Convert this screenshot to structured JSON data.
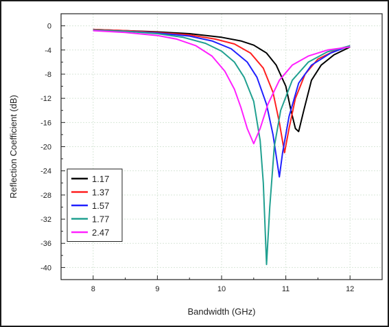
{
  "chart_data": {
    "type": "line",
    "title": "",
    "xlabel": "Bandwidth (GHz)",
    "ylabel": "Reflection Coefficient (dB)",
    "xlim": [
      7.5,
      12.5
    ],
    "ylim": [
      -42,
      2
    ],
    "x_ticks": [
      8,
      9,
      10,
      11,
      12
    ],
    "x_tick_labels": [
      "8",
      "9",
      "10",
      "11",
      "12"
    ],
    "y_ticks": [
      0,
      -4,
      -8,
      -12,
      -16,
      -20,
      -24,
      -28,
      -32,
      -36,
      -40
    ],
    "y_tick_labels": [
      "0",
      "-4",
      "-8",
      "-12",
      "-16",
      "-20",
      "-24",
      "-28",
      "-32",
      "-36",
      "-40"
    ],
    "grid": true,
    "legend_position": "bottom-left",
    "series": [
      {
        "name": "1.17",
        "color": "#000000",
        "points": [
          [
            8.0,
            -0.6
          ],
          [
            8.5,
            -0.8
          ],
          [
            9.0,
            -1.0
          ],
          [
            9.5,
            -1.3
          ],
          [
            10.0,
            -1.9
          ],
          [
            10.3,
            -2.5
          ],
          [
            10.5,
            -3.2
          ],
          [
            10.7,
            -4.5
          ],
          [
            10.85,
            -6.5
          ],
          [
            11.0,
            -10.0
          ],
          [
            11.08,
            -14.0
          ],
          [
            11.15,
            -17.0
          ],
          [
            11.2,
            -17.5
          ],
          [
            11.28,
            -14.0
          ],
          [
            11.4,
            -9.0
          ],
          [
            11.55,
            -6.5
          ],
          [
            11.75,
            -4.8
          ],
          [
            12.0,
            -3.5
          ]
        ]
      },
      {
        "name": "1.37",
        "color": "#ff2020",
        "points": [
          [
            8.0,
            -0.6
          ],
          [
            8.5,
            -0.8
          ],
          [
            9.0,
            -1.1
          ],
          [
            9.5,
            -1.5
          ],
          [
            9.9,
            -2.2
          ],
          [
            10.2,
            -3.0
          ],
          [
            10.45,
            -4.5
          ],
          [
            10.65,
            -7.0
          ],
          [
            10.8,
            -11.0
          ],
          [
            10.9,
            -16.0
          ],
          [
            10.98,
            -21.0
          ],
          [
            11.05,
            -17.0
          ],
          [
            11.15,
            -12.0
          ],
          [
            11.3,
            -8.0
          ],
          [
            11.5,
            -5.5
          ],
          [
            11.75,
            -4.2
          ],
          [
            12.0,
            -3.3
          ]
        ]
      },
      {
        "name": "1.57",
        "color": "#2020ff",
        "points": [
          [
            8.0,
            -0.7
          ],
          [
            8.5,
            -0.9
          ],
          [
            9.0,
            -1.2
          ],
          [
            9.5,
            -1.7
          ],
          [
            9.85,
            -2.5
          ],
          [
            10.15,
            -3.8
          ],
          [
            10.4,
            -6.0
          ],
          [
            10.55,
            -8.5
          ],
          [
            10.7,
            -13.0
          ],
          [
            10.8,
            -18.0
          ],
          [
            10.9,
            -25.0
          ],
          [
            10.95,
            -21.0
          ],
          [
            11.05,
            -15.0
          ],
          [
            11.2,
            -9.5
          ],
          [
            11.4,
            -6.5
          ],
          [
            11.7,
            -4.5
          ],
          [
            12.0,
            -3.3
          ]
        ]
      },
      {
        "name": "1.77",
        "color": "#20a090",
        "points": [
          [
            8.0,
            -0.7
          ],
          [
            8.5,
            -0.9
          ],
          [
            9.0,
            -1.3
          ],
          [
            9.4,
            -1.9
          ],
          [
            9.75,
            -2.9
          ],
          [
            10.0,
            -4.2
          ],
          [
            10.2,
            -6.0
          ],
          [
            10.35,
            -8.5
          ],
          [
            10.5,
            -12.5
          ],
          [
            10.6,
            -19.0
          ],
          [
            10.65,
            -26.0
          ],
          [
            10.7,
            -39.5
          ],
          [
            10.75,
            -30.0
          ],
          [
            10.82,
            -20.0
          ],
          [
            10.92,
            -14.0
          ],
          [
            11.1,
            -9.0
          ],
          [
            11.35,
            -6.0
          ],
          [
            11.65,
            -4.3
          ],
          [
            12.0,
            -3.3
          ]
        ]
      },
      {
        "name": "2.47",
        "color": "#ff20ff",
        "points": [
          [
            8.0,
            -0.8
          ],
          [
            8.5,
            -1.1
          ],
          [
            9.0,
            -1.6
          ],
          [
            9.3,
            -2.2
          ],
          [
            9.6,
            -3.3
          ],
          [
            9.85,
            -5.0
          ],
          [
            10.05,
            -7.5
          ],
          [
            10.2,
            -10.5
          ],
          [
            10.3,
            -13.5
          ],
          [
            10.4,
            -17.0
          ],
          [
            10.5,
            -19.5
          ],
          [
            10.6,
            -17.0
          ],
          [
            10.72,
            -13.0
          ],
          [
            10.9,
            -9.0
          ],
          [
            11.1,
            -6.5
          ],
          [
            11.35,
            -5.0
          ],
          [
            11.65,
            -4.0
          ],
          [
            12.0,
            -3.5
          ]
        ]
      }
    ]
  }
}
